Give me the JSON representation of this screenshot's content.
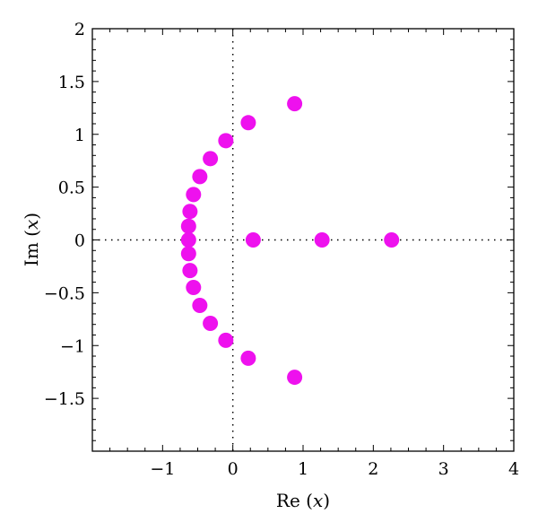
{
  "chart_data": {
    "type": "scatter",
    "xlabel": {
      "prefix": "Re",
      "open": " (",
      "var": "x",
      "close": ")"
    },
    "ylabel": {
      "prefix": "Im",
      "open": " (",
      "var": "x",
      "close": ")"
    },
    "xlim": [
      -2,
      4
    ],
    "ylim": [
      -2,
      2
    ],
    "xticks": [
      {
        "value": -1,
        "label": "−1"
      },
      {
        "value": 0,
        "label": "0"
      },
      {
        "value": 1,
        "label": "1"
      },
      {
        "value": 2,
        "label": "2"
      },
      {
        "value": 3,
        "label": "3"
      },
      {
        "value": 4,
        "label": "4"
      }
    ],
    "yticks": [
      {
        "value": 2,
        "label": "2"
      },
      {
        "value": 1.5,
        "label": "1.5"
      },
      {
        "value": 1,
        "label": "1"
      },
      {
        "value": 0.5,
        "label": "0.5"
      },
      {
        "value": 0,
        "label": "0"
      },
      {
        "value": -0.5,
        "label": "−0.5"
      },
      {
        "value": -1,
        "label": "−1"
      },
      {
        "value": -1.5,
        "label": "−1.5"
      }
    ],
    "grid": false,
    "reference_lines": [
      "x=0",
      "y=0"
    ],
    "marker_color": "#ee11ee",
    "points": [
      {
        "x": 0.88,
        "y": 1.29
      },
      {
        "x": 0.22,
        "y": 1.11
      },
      {
        "x": -0.1,
        "y": 0.94
      },
      {
        "x": -0.32,
        "y": 0.77
      },
      {
        "x": -0.47,
        "y": 0.6
      },
      {
        "x": -0.56,
        "y": 0.43
      },
      {
        "x": -0.61,
        "y": 0.27
      },
      {
        "x": -0.63,
        "y": 0.13
      },
      {
        "x": -0.63,
        "y": 0.0
      },
      {
        "x": -0.63,
        "y": -0.13
      },
      {
        "x": -0.61,
        "y": -0.29
      },
      {
        "x": -0.56,
        "y": -0.45
      },
      {
        "x": -0.47,
        "y": -0.62
      },
      {
        "x": -0.32,
        "y": -0.79
      },
      {
        "x": -0.1,
        "y": -0.95
      },
      {
        "x": 0.22,
        "y": -1.12
      },
      {
        "x": 0.88,
        "y": -1.3
      },
      {
        "x": 0.29,
        "y": 0.0
      },
      {
        "x": 1.27,
        "y": 0.0
      },
      {
        "x": 2.26,
        "y": 0.0
      }
    ]
  }
}
